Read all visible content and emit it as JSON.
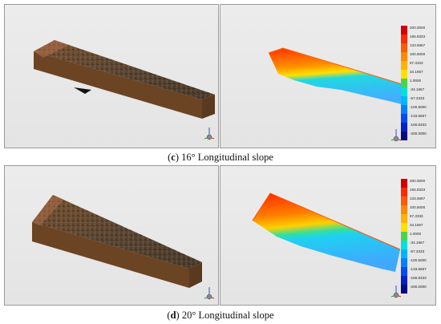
{
  "figures": [
    {
      "letter": "c",
      "caption": "16° Longitudinal slope",
      "legend_values": [
        "200.0000",
        "166.8333",
        "133.6667",
        "100.5000",
        "67.3333",
        "34.1667",
        "1.0000",
        "-34.1667",
        "-67.3333",
        "-100.5000",
        "-133.6667",
        "-166.8333",
        "-200.0000"
      ]
    },
    {
      "letter": "d",
      "caption": "20° Longitudinal slope",
      "legend_values": [
        "200.0000",
        "166.8333",
        "133.6667",
        "100.5000",
        "67.3333",
        "34.1667",
        "1.0000",
        "-34.1667",
        "-67.3333",
        "-100.5000",
        "-133.6667",
        "-166.8333",
        "-200.0000"
      ]
    }
  ],
  "legend_colors": [
    "#d40000",
    "#ff2a00",
    "#ff5a00",
    "#ff8a00",
    "#ffb400",
    "#ffe000",
    "#4cd24c",
    "#00e0e0",
    "#00b4ff",
    "#0080ff",
    "#004cf0",
    "#0020c8",
    "#000a80"
  ],
  "axis_triad_labels": [
    "X",
    "Y",
    "Z"
  ]
}
